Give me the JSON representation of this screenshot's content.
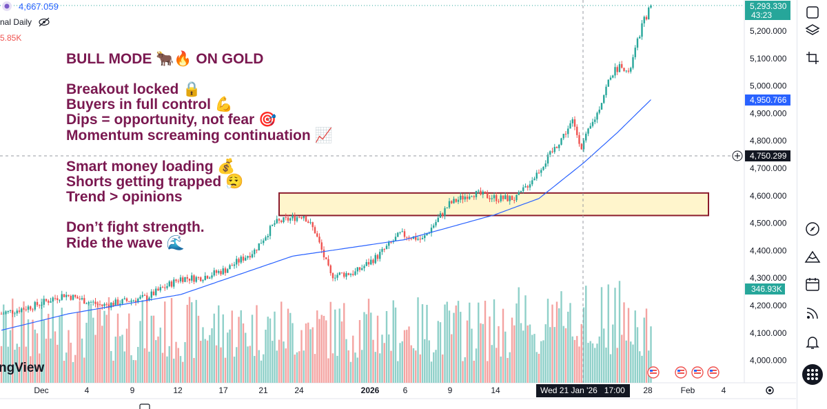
{
  "header": {
    "price": "4,667.059",
    "indicator_label": "nal Daily",
    "volume_value": "5.85K",
    "brand": "ngView"
  },
  "overlay": {
    "lines": [
      "BULL MODE 🐂🔥 ON GOLD",
      "",
      "Breakout locked 🔒",
      "Buyers in full control 💪",
      "Dips = opportunity, not fear 🎯",
      "Momentum screaming continuation 📈",
      "",
      "Smart money loading 💰",
      "Shorts getting trapped 😮‍💨",
      "Trend > opinions",
      "",
      "Don’t fight strength.",
      "Ride the wave 🌊"
    ]
  },
  "price_tags": {
    "last": {
      "value": "5,293.330",
      "timer": "43:23",
      "color": "#26a69a"
    },
    "ma": {
      "value": "4,950.766",
      "color": "#2962ff"
    },
    "crosshair": {
      "value": "4,750.299",
      "color": "#131722"
    },
    "volume": {
      "value": "346.93K",
      "color": "#26a69a"
    }
  },
  "crosshair_date": "Wed 21 Jan '26   17:00",
  "colors": {
    "up": "#26a69a",
    "down": "#ef5350",
    "vol_up": "#8fd0c9",
    "vol_down": "#f4a3a1",
    "ma": "#2962ff",
    "zone_fill": "#fff5cc",
    "zone_border": "#8b1a2b",
    "overlay_text": "#7a1850"
  },
  "right_toolbar_icons": [
    "chart-icon",
    "layers-icon",
    "crop-icon",
    "ruler-icon",
    "compass-icon",
    "mountain-icon",
    "calendar-icon",
    "broadcast-icon",
    "bell-icon",
    "grid-icon"
  ],
  "chart_data": {
    "type": "candlestick",
    "symbol": "GOLD",
    "y_ticks": [
      "5,200.000",
      "5,100.000",
      "5,000.000",
      "4,900.000",
      "4,800.000",
      "4,700.000",
      "4,600.000",
      "4,500.000",
      "4,400.000",
      "4,300.000",
      "4,200.000",
      "4,100.000",
      "4,000.000"
    ],
    "y_tick_values": [
      5200,
      5100,
      5000,
      4900,
      4800,
      4700,
      4600,
      4500,
      4400,
      4300,
      4200,
      4100,
      4000
    ],
    "ylim": [
      3970,
      5310
    ],
    "x_ticks": [
      "Dec",
      "4",
      "9",
      "12",
      "17",
      "21",
      "24",
      "2026",
      "6",
      "9",
      "14",
      "28",
      "Feb",
      "4"
    ],
    "zone": {
      "low": 4528,
      "high": 4610
    },
    "last_price": 5293.33,
    "ma_last": 4950.766,
    "crosshair_price": 4750.299,
    "anchors": [
      {
        "t": 0,
        "p": 4170
      },
      {
        "t": 15,
        "p": 4200
      },
      {
        "t": 28,
        "p": 4240
      },
      {
        "t": 45,
        "p": 4200
      },
      {
        "t": 65,
        "p": 4230
      },
      {
        "t": 80,
        "p": 4300
      },
      {
        "t": 88,
        "p": 4300
      },
      {
        "t": 100,
        "p": 4330
      },
      {
        "t": 113,
        "p": 4400
      },
      {
        "t": 122,
        "p": 4500
      },
      {
        "t": 135,
        "p": 4530
      },
      {
        "t": 140,
        "p": 4470
      },
      {
        "t": 147,
        "p": 4310
      },
      {
        "t": 158,
        "p": 4320
      },
      {
        "t": 168,
        "p": 4380
      },
      {
        "t": 178,
        "p": 4460
      },
      {
        "t": 188,
        "p": 4440
      },
      {
        "t": 200,
        "p": 4570
      },
      {
        "t": 210,
        "p": 4610
      },
      {
        "t": 222,
        "p": 4590
      },
      {
        "t": 230,
        "p": 4590
      },
      {
        "t": 238,
        "p": 4670
      },
      {
        "t": 246,
        "p": 4760
      },
      {
        "t": 255,
        "p": 4870
      },
      {
        "t": 259,
        "p": 4780
      },
      {
        "t": 266,
        "p": 4900
      },
      {
        "t": 272,
        "p": 5040
      },
      {
        "t": 277,
        "p": 5080
      },
      {
        "t": 280,
        "p": 5040
      },
      {
        "t": 286,
        "p": 5220
      },
      {
        "t": 290,
        "p": 5293
      }
    ],
    "ma_anchors": [
      {
        "t": 0,
        "p": 4110
      },
      {
        "t": 30,
        "p": 4170
      },
      {
        "t": 80,
        "p": 4240
      },
      {
        "t": 130,
        "p": 4380
      },
      {
        "t": 180,
        "p": 4440
      },
      {
        "t": 220,
        "p": 4530
      },
      {
        "t": 240,
        "p": 4590
      },
      {
        "t": 260,
        "p": 4720
      },
      {
        "t": 275,
        "p": 4830
      },
      {
        "t": 290,
        "p": 4950
      }
    ]
  }
}
